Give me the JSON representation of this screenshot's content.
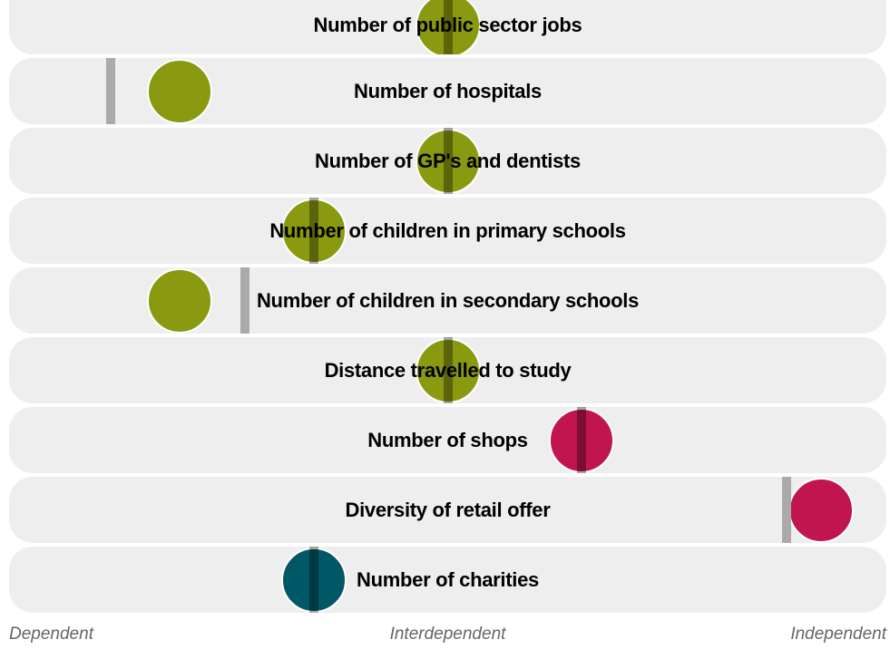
{
  "chart_data": {
    "type": "scatter",
    "axis": {
      "labels": [
        "Dependent",
        "Interdependent",
        "Independent"
      ],
      "range": [
        0,
        1
      ]
    },
    "colors": {
      "public": "#8a9a10",
      "retail": "#c0154e",
      "voluntary": "#005866",
      "row_bg": "#eeeeee",
      "marker": "#aaaaaa"
    },
    "rows": [
      {
        "label": "Number of public sector jobs",
        "value": 0.5,
        "marker": 0.5,
        "color_key": "public"
      },
      {
        "label": "Number of hospitals",
        "value": 0.17,
        "marker": 0.085,
        "color_key": "public"
      },
      {
        "label": "Number of GP's and dentists",
        "value": 0.5,
        "marker": 0.5,
        "color_key": "public"
      },
      {
        "label": "Number of children in primary schools",
        "value": 0.335,
        "marker": 0.335,
        "color_key": "public"
      },
      {
        "label": "Number of children in secondary schools",
        "value": 0.17,
        "marker": 0.25,
        "color_key": "public"
      },
      {
        "label": "Distance travelled to study",
        "value": 0.5,
        "marker": 0.5,
        "color_key": "public"
      },
      {
        "label": "Number of shops",
        "value": 0.665,
        "marker": 0.665,
        "color_key": "retail"
      },
      {
        "label": "Diversity of retail offer",
        "value": 0.96,
        "marker": 0.917,
        "color_key": "retail"
      },
      {
        "label": "Number of charities",
        "value": 0.335,
        "marker": 0.335,
        "color_key": "voluntary"
      }
    ]
  }
}
